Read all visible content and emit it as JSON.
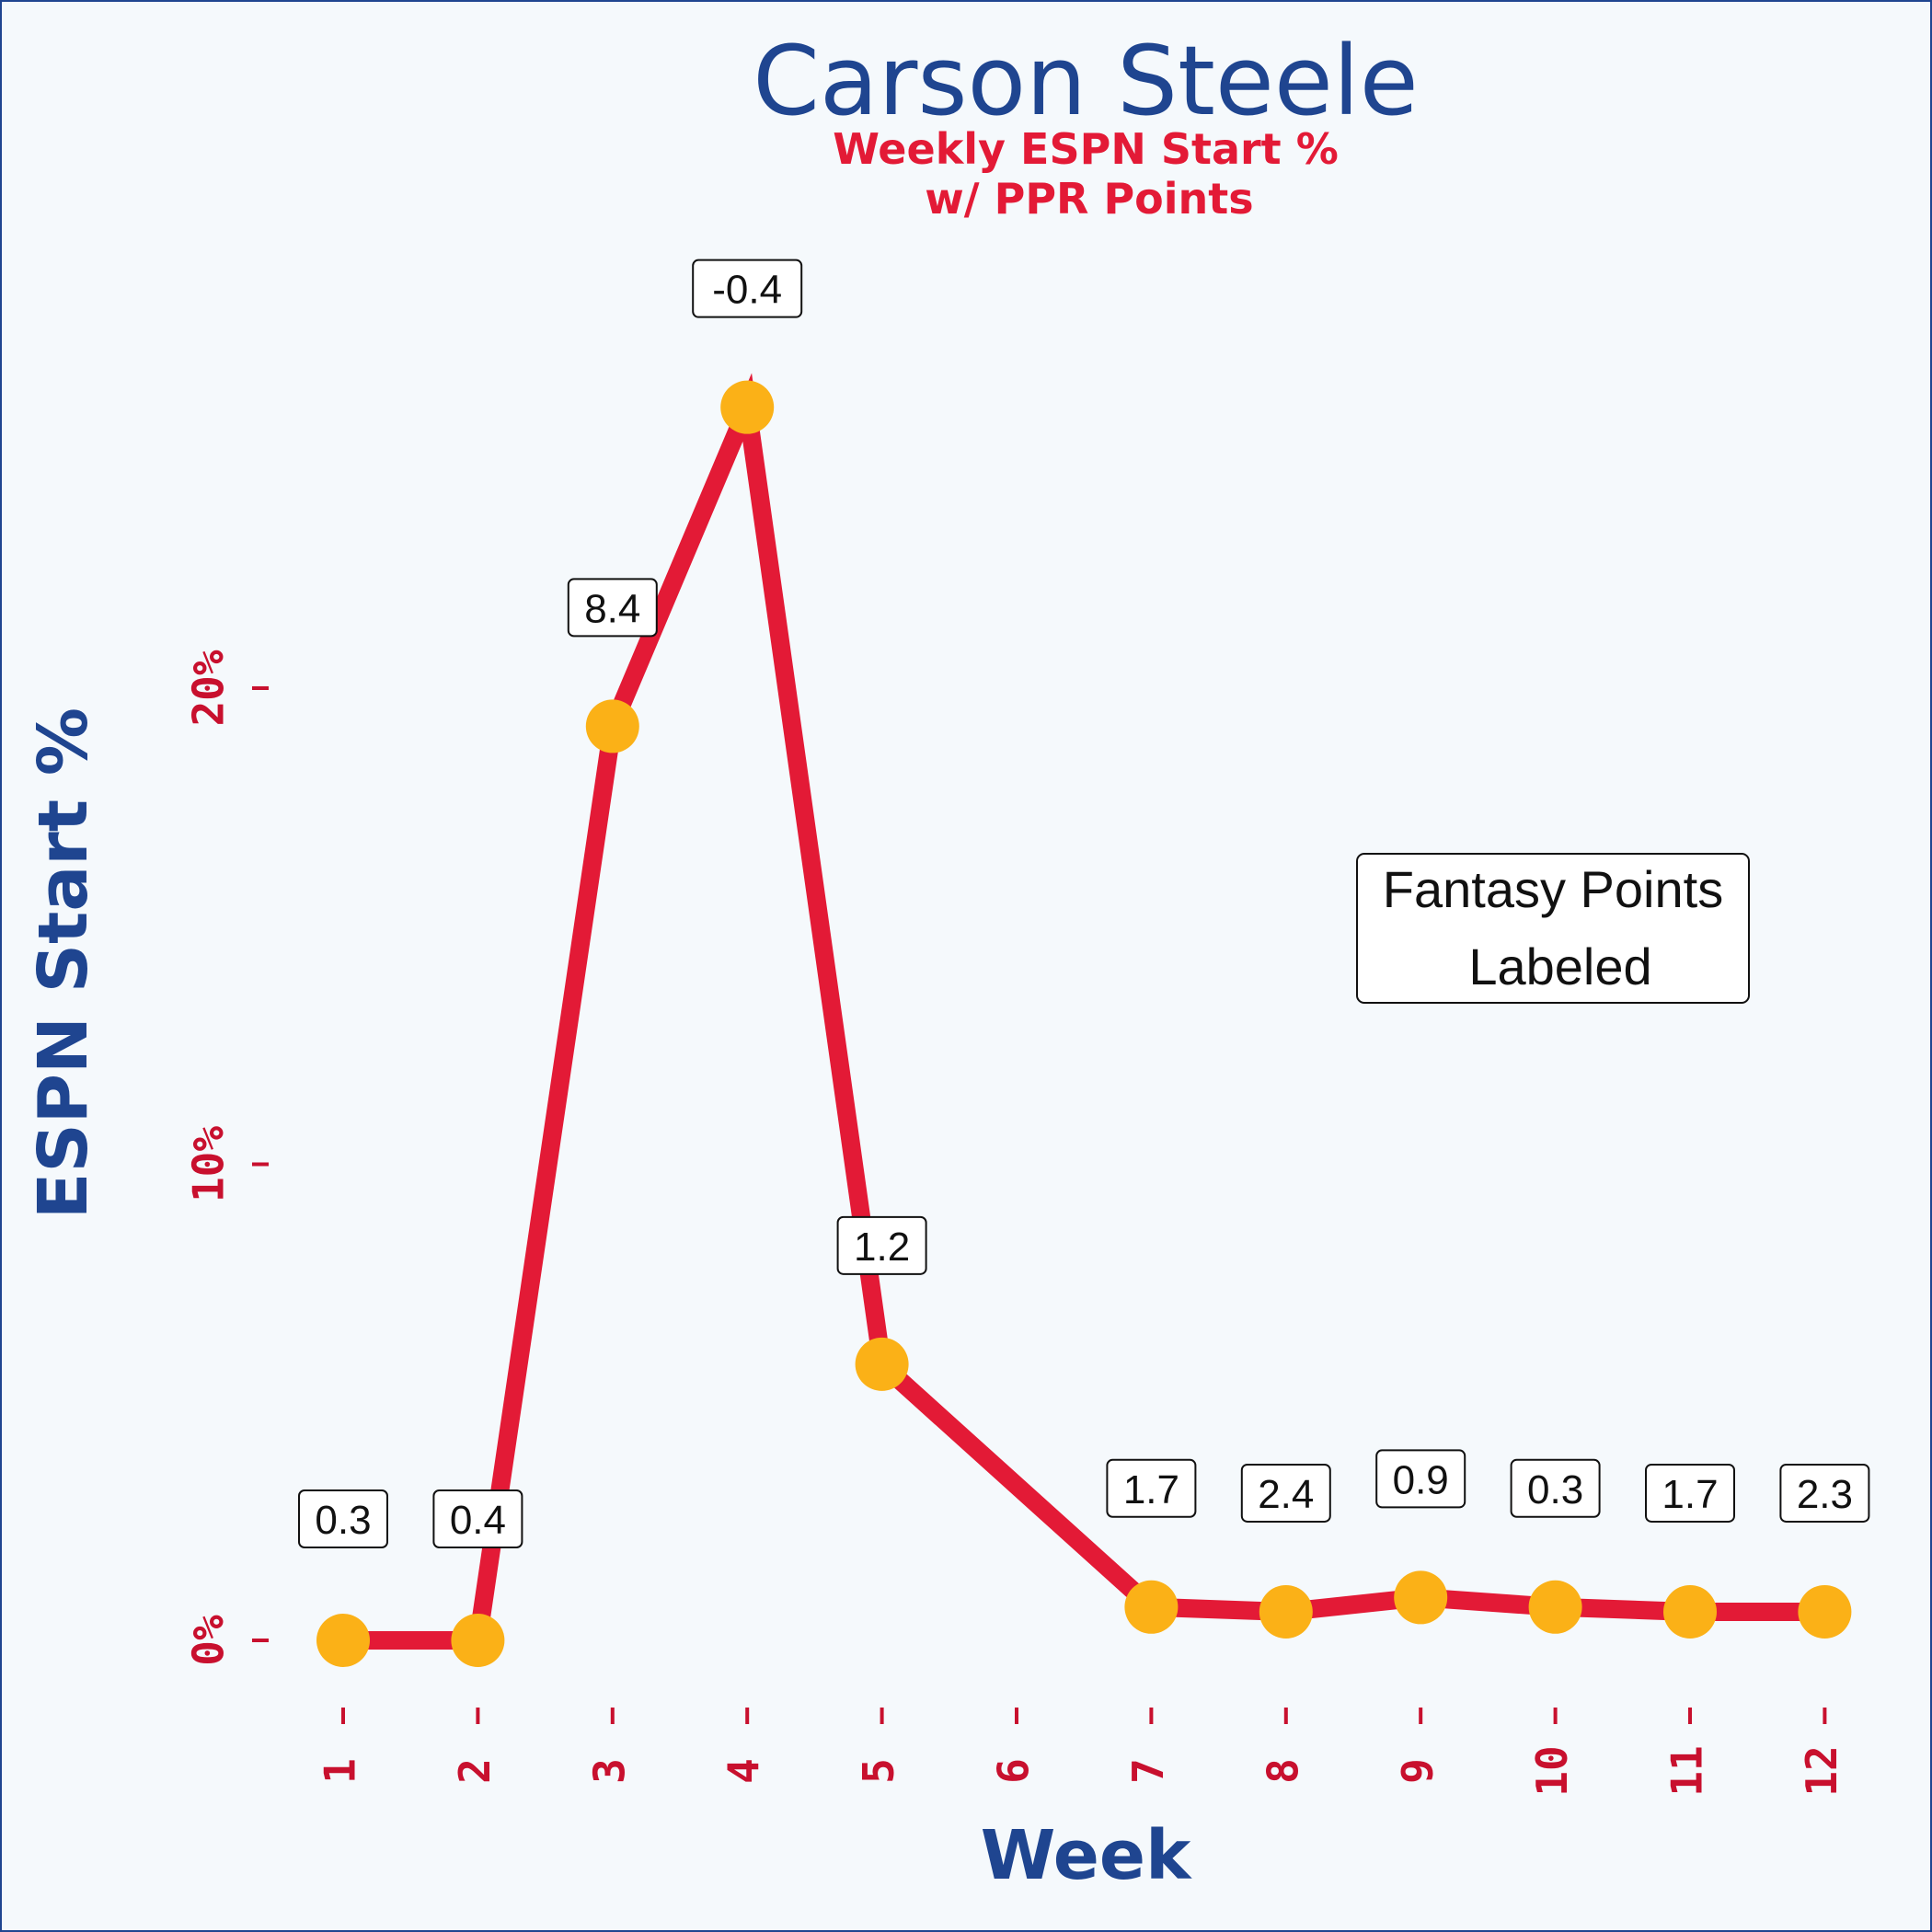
{
  "chart_data": {
    "type": "line",
    "title": "Carson Steele",
    "subtitle_lines": [
      "Weekly ESPN Start %",
      "w/ PPR Points"
    ],
    "xlabel": "Week",
    "ylabel": "ESPN Start %",
    "x_ticks": [
      "1",
      "2",
      "3",
      "4",
      "5",
      "6",
      "7",
      "8",
      "9",
      "10",
      "11",
      "12"
    ],
    "y_ticks": [
      {
        "value": 0,
        "label": "0%"
      },
      {
        "value": 10,
        "label": "10%"
      },
      {
        "value": 20,
        "label": "20%"
      }
    ],
    "ylim": [
      0,
      26
    ],
    "x": [
      1,
      2,
      3,
      4,
      5,
      7,
      8,
      9,
      10,
      11,
      12
    ],
    "values": [
      0.0,
      0.0,
      19.2,
      25.9,
      5.8,
      0.7,
      0.6,
      0.9,
      0.7,
      0.6,
      0.6
    ],
    "point_labels": [
      "0.3",
      "0.4",
      "8.4",
      "-0.4",
      "1.2",
      "1.7",
      "2.4",
      "0.9",
      "0.3",
      "1.7",
      "2.3"
    ],
    "annotation_lines": [
      "Fantasy Points",
      "Labeled"
    ],
    "grid": false,
    "colors": {
      "line": "#e31a36",
      "marker": "#fbb117",
      "title": "#1f4590",
      "subtitle": "#e31a36",
      "ticks": "#c8102e",
      "background": "#f5f9fc",
      "border": "#1f4590"
    }
  }
}
